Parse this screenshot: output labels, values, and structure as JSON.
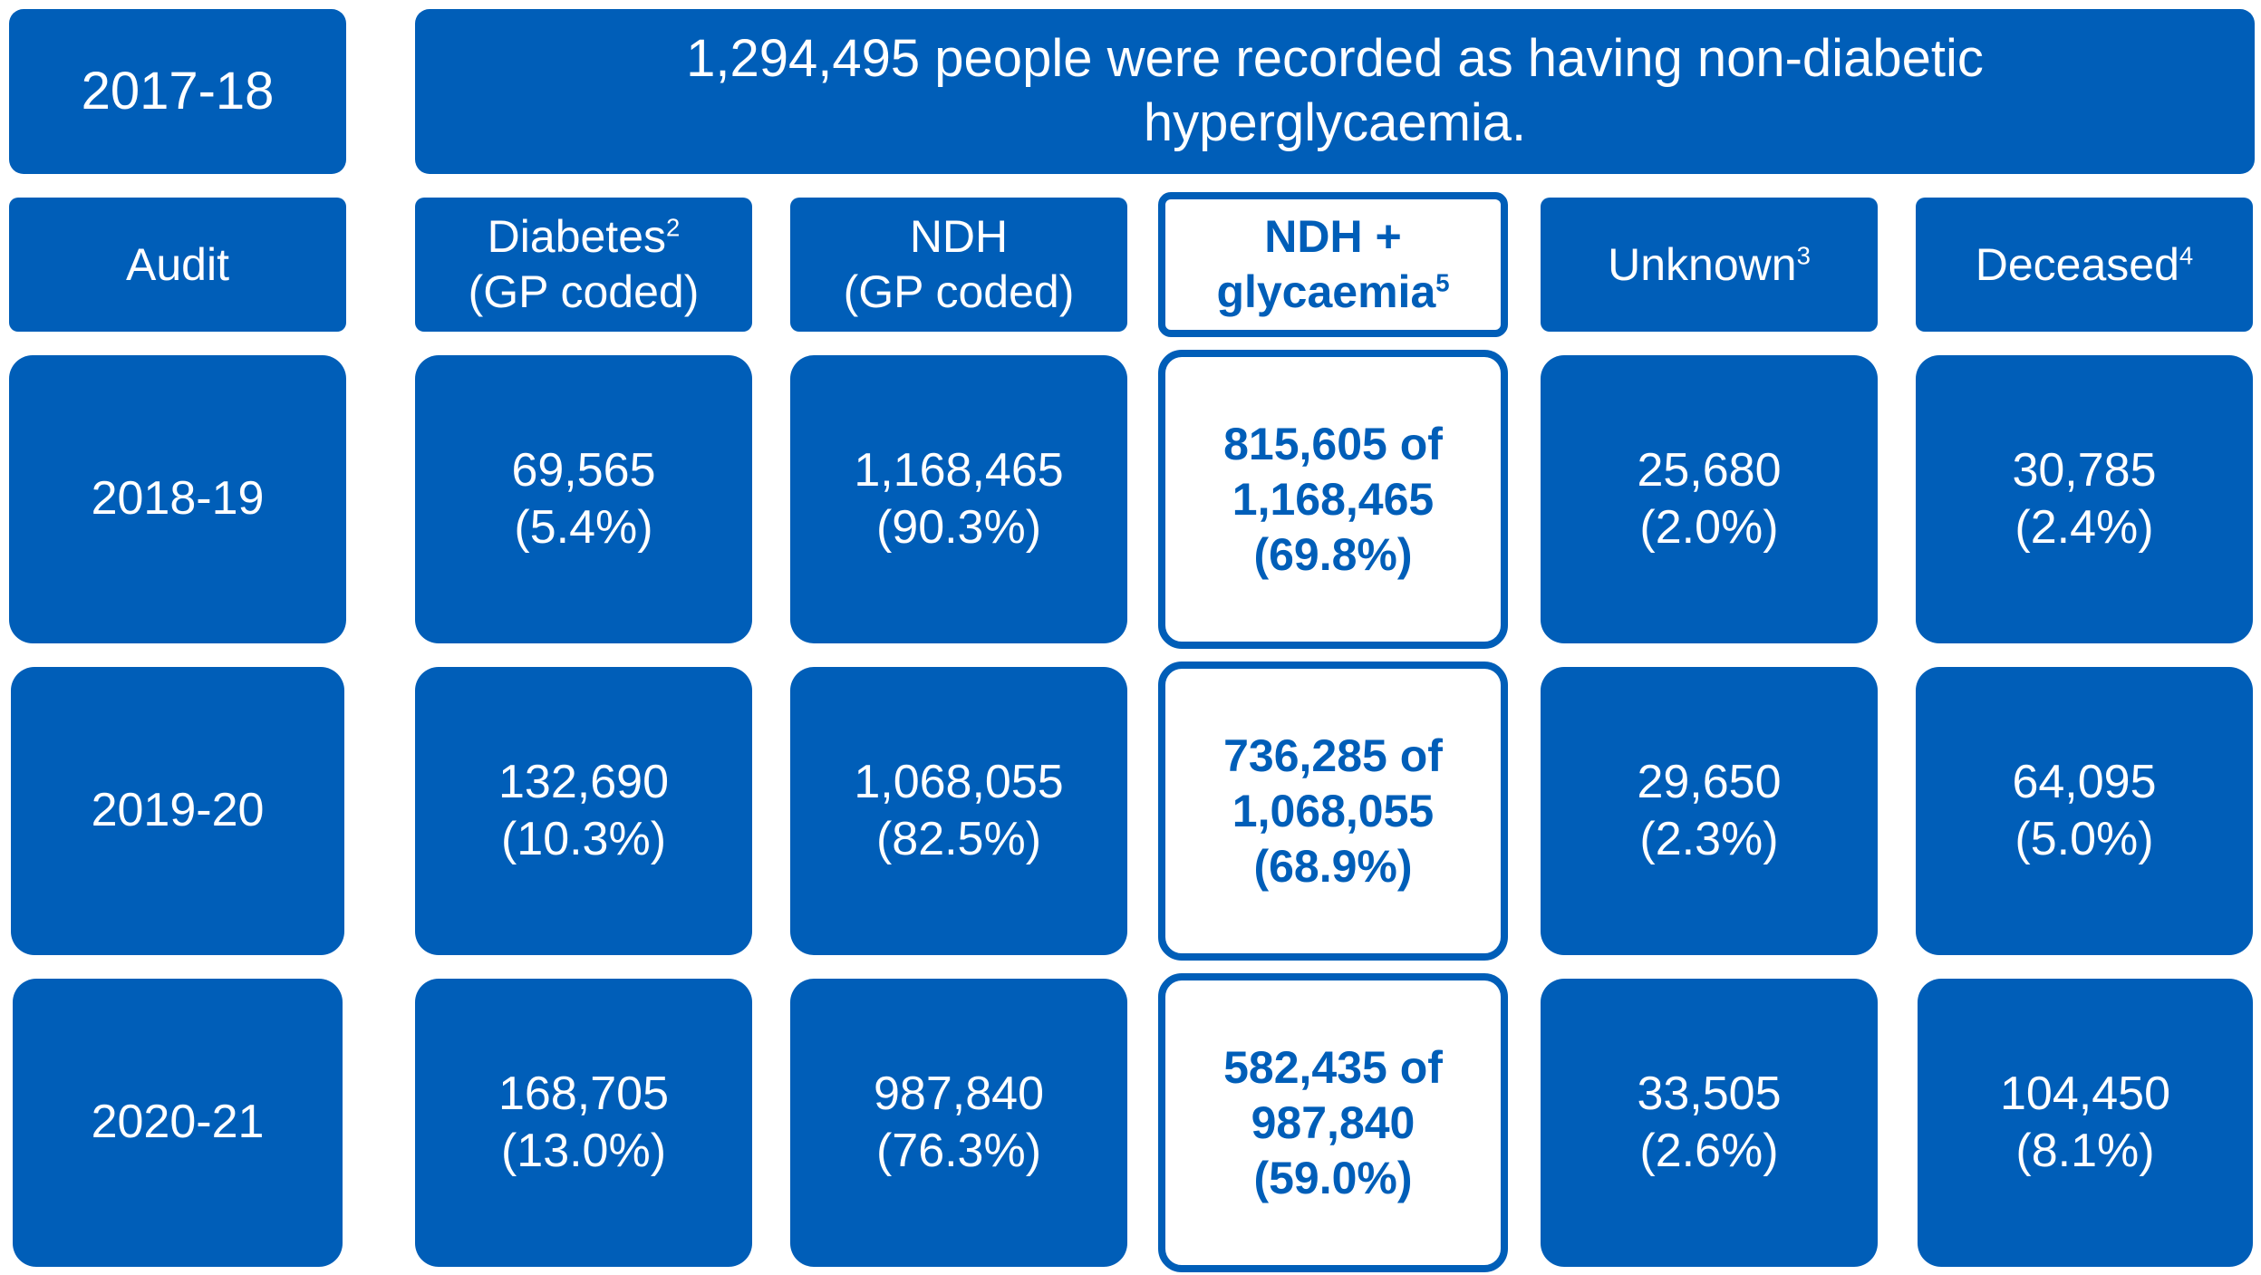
{
  "baseline": {
    "year": "2017-18",
    "headline": [
      "1,294,495 people were recorded as having non-diabetic",
      "hyperglycaemia."
    ]
  },
  "headers": {
    "audit": "Audit",
    "diabetes": {
      "line1": "Diabetes",
      "sup": "2",
      "line2": "(GP coded)"
    },
    "ndh": {
      "line1": "NDH",
      "line2": "(GP coded)"
    },
    "ndh_glycaemia": {
      "line1": "NDH +",
      "line2": "glycaemia",
      "sup": "5"
    },
    "unknown": {
      "line1": "Unknown",
      "sup": "3"
    },
    "deceased": {
      "line1": "Deceased",
      "sup": "4"
    }
  },
  "rows": [
    {
      "audit": "2018-19",
      "diabetes": [
        "69,565",
        "(5.4%)"
      ],
      "ndh": [
        "1,168,465",
        "(90.3%)"
      ],
      "ndh_glycaemia": [
        "815,605 of",
        "1,168,465",
        "(69.8%)"
      ],
      "unknown": [
        "25,680",
        "(2.0%)"
      ],
      "deceased": [
        "30,785",
        "(2.4%)"
      ]
    },
    {
      "audit": "2019-20",
      "diabetes": [
        "132,690",
        "(10.3%)"
      ],
      "ndh": [
        "1,068,055",
        "(82.5%)"
      ],
      "ndh_glycaemia": [
        "736,285 of",
        "1,068,055",
        "(68.9%)"
      ],
      "unknown": [
        "29,650",
        "(2.3%)"
      ],
      "deceased": [
        "64,095",
        "(5.0%)"
      ]
    },
    {
      "audit": "2020-21",
      "diabetes": [
        "168,705",
        "(13.0%)"
      ],
      "ndh": [
        "987,840",
        "(76.3%)"
      ],
      "ndh_glycaemia": [
        "582,435 of",
        "987,840",
        "(59.0%)"
      ],
      "unknown": [
        "33,505",
        "(2.6%)"
      ],
      "deceased": [
        "104,450",
        "(8.1%)"
      ]
    }
  ],
  "colors": {
    "primary": "#005EB8",
    "background": "#FFFFFF",
    "text_on_primary": "#FFFFFF"
  }
}
